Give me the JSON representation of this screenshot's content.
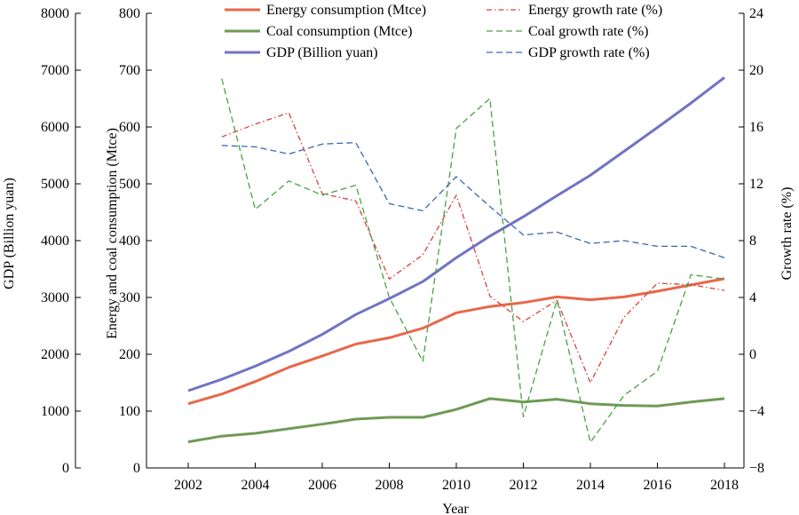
{
  "chart_data": {
    "type": "line",
    "xlabel": "Year",
    "x": [
      2002,
      2003,
      2004,
      2005,
      2006,
      2007,
      2008,
      2009,
      2010,
      2011,
      2012,
      2013,
      2014,
      2015,
      2016,
      2017,
      2018
    ],
    "x_ticks": [
      "2002",
      "2004",
      "2006",
      "2008",
      "2010",
      "2012",
      "2014",
      "2016",
      "2018"
    ],
    "axes": {
      "gdp": {
        "label": "GDP (Billion yuan)",
        "side": "far-left",
        "range": [
          0,
          8000
        ],
        "ticks": [
          "0",
          "1000",
          "2000",
          "3000",
          "4000",
          "5000",
          "6000",
          "7000",
          "8000"
        ]
      },
      "consumption": {
        "label": "Energy and coal consumption (Mtce)",
        "side": "left",
        "range": [
          0,
          800
        ],
        "ticks": [
          "0",
          "100",
          "200",
          "300",
          "400",
          "500",
          "600",
          "700",
          "800"
        ]
      },
      "growth": {
        "label": "Growth rate (%)",
        "side": "right",
        "range": [
          -8,
          24
        ],
        "ticks": [
          "−8",
          "−4",
          "0",
          "4",
          "8",
          "12",
          "16",
          "20",
          "24"
        ]
      }
    },
    "series": [
      {
        "name": "Energy consumption (Mtce)",
        "axis": "consumption",
        "color": "#e8674a",
        "style": "solid",
        "x": [
          2002,
          2003,
          2004,
          2005,
          2006,
          2007,
          2008,
          2009,
          2010,
          2011,
          2012,
          2013,
          2014,
          2015,
          2016,
          2017,
          2018
        ],
        "values": [
          113,
          130,
          152,
          177,
          197,
          218,
          229,
          246,
          273,
          284,
          291,
          301,
          296,
          301,
          311,
          322,
          333
        ]
      },
      {
        "name": "Coal consumption (Mtce)",
        "axis": "consumption",
        "color": "#6f9a55",
        "style": "solid",
        "x": [
          2002,
          2003,
          2004,
          2005,
          2006,
          2007,
          2008,
          2009,
          2010,
          2011,
          2012,
          2013,
          2014,
          2015,
          2016,
          2017,
          2018
        ],
        "values": [
          46,
          56,
          61,
          69,
          77,
          86,
          89,
          89,
          103,
          122,
          116,
          121,
          113,
          110,
          109,
          116,
          122
        ]
      },
      {
        "name": "GDP (Billion yuan)",
        "axis": "gdp",
        "color": "#7173c2",
        "style": "solid",
        "x": [
          2002,
          2003,
          2004,
          2005,
          2006,
          2007,
          2008,
          2009,
          2010,
          2011,
          2012,
          2013,
          2014,
          2015,
          2016,
          2017,
          2018
        ],
        "values": [
          1360,
          1560,
          1790,
          2050,
          2350,
          2700,
          2980,
          3280,
          3700,
          4080,
          4420,
          4790,
          5150,
          5570,
          5990,
          6420,
          6870
        ]
      },
      {
        "name": "Energy growth rate (%)",
        "axis": "growth",
        "color": "#d8413a",
        "style": "dashdot",
        "x": [
          2003,
          2004,
          2005,
          2006,
          2007,
          2008,
          2009,
          2010,
          2011,
          2012,
          2013,
          2014,
          2015,
          2016,
          2017,
          2018
        ],
        "values": [
          15.3,
          16.2,
          17.0,
          11.3,
          10.8,
          5.3,
          7.0,
          11.2,
          4.1,
          2.3,
          3.8,
          -2.0,
          2.6,
          5.0,
          4.9,
          4.5
        ]
      },
      {
        "name": "Coal growth rate (%)",
        "axis": "growth",
        "color": "#4aa143",
        "style": "dashed",
        "x": [
          2003,
          2004,
          2005,
          2006,
          2007,
          2008,
          2009,
          2010,
          2011,
          2012,
          2013,
          2014,
          2015,
          2016,
          2017,
          2018
        ],
        "values": [
          19.4,
          10.2,
          12.2,
          11.2,
          11.9,
          4.0,
          -0.5,
          15.9,
          18.0,
          -4.4,
          3.8,
          -6.2,
          -2.9,
          -1.2,
          5.6,
          5.3
        ]
      },
      {
        "name": "GDP growth rate (%)",
        "axis": "growth",
        "color": "#3b67b3",
        "style": "dashed",
        "x": [
          2003,
          2004,
          2005,
          2006,
          2007,
          2008,
          2009,
          2010,
          2011,
          2012,
          2013,
          2014,
          2015,
          2016,
          2017,
          2018
        ],
        "values": [
          14.7,
          14.6,
          14.1,
          14.8,
          14.9,
          10.6,
          10.1,
          12.5,
          10.4,
          8.4,
          8.6,
          7.8,
          8.0,
          7.6,
          7.6,
          6.8
        ]
      }
    ],
    "legend": {
      "placement": "top",
      "columns": 2
    },
    "grid": false
  }
}
